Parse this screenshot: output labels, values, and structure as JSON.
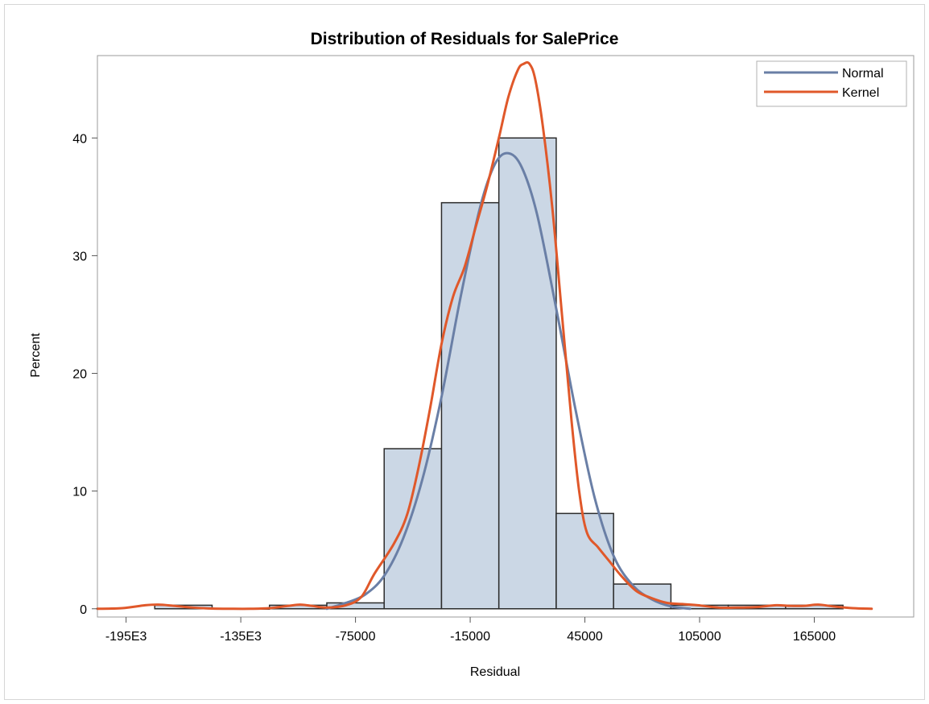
{
  "chart_data": {
    "type": "bar",
    "title": "Distribution of Residuals for SalePrice",
    "xlabel": "Residual",
    "ylabel": "Percent",
    "x_ticks": [
      {
        "value": -195000,
        "label": "-195E3"
      },
      {
        "value": -135000,
        "label": "-135E3"
      },
      {
        "value": -75000,
        "label": "-75000"
      },
      {
        "value": -15000,
        "label": "-15000"
      },
      {
        "value": 45000,
        "label": "45000"
      },
      {
        "value": 105000,
        "label": "105000"
      },
      {
        "value": 165000,
        "label": "165000"
      }
    ],
    "y_ticks": [
      0,
      10,
      20,
      30,
      40
    ],
    "xlim": [
      -210000,
      217000
    ],
    "ylim": [
      -0.7,
      47
    ],
    "bin_width": 30000,
    "histogram": [
      {
        "center": -165000,
        "percent": 0.3
      },
      {
        "center": -135000,
        "percent": 0
      },
      {
        "center": -105000,
        "percent": 0.3
      },
      {
        "center": -75000,
        "percent": 0.5
      },
      {
        "center": -45000,
        "percent": 13.6
      },
      {
        "center": -15000,
        "percent": 34.5
      },
      {
        "center": 15000,
        "percent": 40.0
      },
      {
        "center": 45000,
        "percent": 8.1
      },
      {
        "center": 75000,
        "percent": 2.1
      },
      {
        "center": 105000,
        "percent": 0.3
      },
      {
        "center": 135000,
        "percent": 0.3
      },
      {
        "center": 165000,
        "percent": 0.3
      }
    ],
    "series": [
      {
        "name": "Normal",
        "color": "#6a7fa6",
        "points": [
          [
            -90000,
            0
          ],
          [
            -80000,
            0.5
          ],
          [
            -70000,
            1.2
          ],
          [
            -60000,
            2.8
          ],
          [
            -50000,
            6.0
          ],
          [
            -40000,
            11.0
          ],
          [
            -30000,
            18.0
          ],
          [
            -20000,
            26.5
          ],
          [
            -10000,
            34.0
          ],
          [
            -2000,
            37.8
          ],
          [
            5000,
            38.7
          ],
          [
            12000,
            37.5
          ],
          [
            20000,
            33.5
          ],
          [
            30000,
            25.5
          ],
          [
            40000,
            17.0
          ],
          [
            50000,
            9.5
          ],
          [
            60000,
            4.5
          ],
          [
            70000,
            2.0
          ],
          [
            80000,
            0.8
          ],
          [
            90000,
            0.2
          ],
          [
            100000,
            0
          ]
        ]
      },
      {
        "name": "Kernel",
        "color": "#e0582a",
        "points": [
          [
            -210000,
            0
          ],
          [
            -197000,
            0.05
          ],
          [
            -185000,
            0.3
          ],
          [
            -178000,
            0.35
          ],
          [
            -170000,
            0.25
          ],
          [
            -160000,
            0.1
          ],
          [
            -150000,
            0.02
          ],
          [
            -140000,
            0
          ],
          [
            -130000,
            0
          ],
          [
            -120000,
            0.05
          ],
          [
            -110000,
            0.25
          ],
          [
            -104000,
            0.35
          ],
          [
            -98000,
            0.25
          ],
          [
            -90000,
            0.1
          ],
          [
            -80000,
            0.3
          ],
          [
            -72000,
            1.0
          ],
          [
            -65000,
            3.0
          ],
          [
            -55000,
            5.5
          ],
          [
            -48000,
            8.0
          ],
          [
            -42000,
            12.0
          ],
          [
            -36000,
            17.0
          ],
          [
            -30000,
            22.5
          ],
          [
            -24000,
            26.5
          ],
          [
            -18000,
            29.0
          ],
          [
            -12000,
            32.5
          ],
          [
            -6000,
            36.0
          ],
          [
            0,
            40.0
          ],
          [
            5000,
            43.5
          ],
          [
            10000,
            45.8
          ],
          [
            13000,
            46.3
          ],
          [
            16000,
            46.3
          ],
          [
            19000,
            45.0
          ],
          [
            23000,
            41.0
          ],
          [
            28000,
            34.0
          ],
          [
            33000,
            25.0
          ],
          [
            38000,
            16.0
          ],
          [
            42000,
            10.0
          ],
          [
            46000,
            6.5
          ],
          [
            52000,
            5.2
          ],
          [
            58000,
            4.0
          ],
          [
            64000,
            2.8
          ],
          [
            72000,
            1.5
          ],
          [
            80000,
            0.9
          ],
          [
            88000,
            0.5
          ],
          [
            96000,
            0.4
          ],
          [
            104000,
            0.3
          ],
          [
            115000,
            0.1
          ],
          [
            125000,
            0.1
          ],
          [
            135000,
            0.15
          ],
          [
            145000,
            0.3
          ],
          [
            152000,
            0.25
          ],
          [
            160000,
            0.25
          ],
          [
            167000,
            0.35
          ],
          [
            175000,
            0.2
          ],
          [
            185000,
            0.05
          ],
          [
            195000,
            0
          ]
        ]
      }
    ],
    "bar_fill": "#cbd7e5",
    "bar_stroke": "#2b2b2b",
    "legend_position": "top-right",
    "grid": false
  }
}
